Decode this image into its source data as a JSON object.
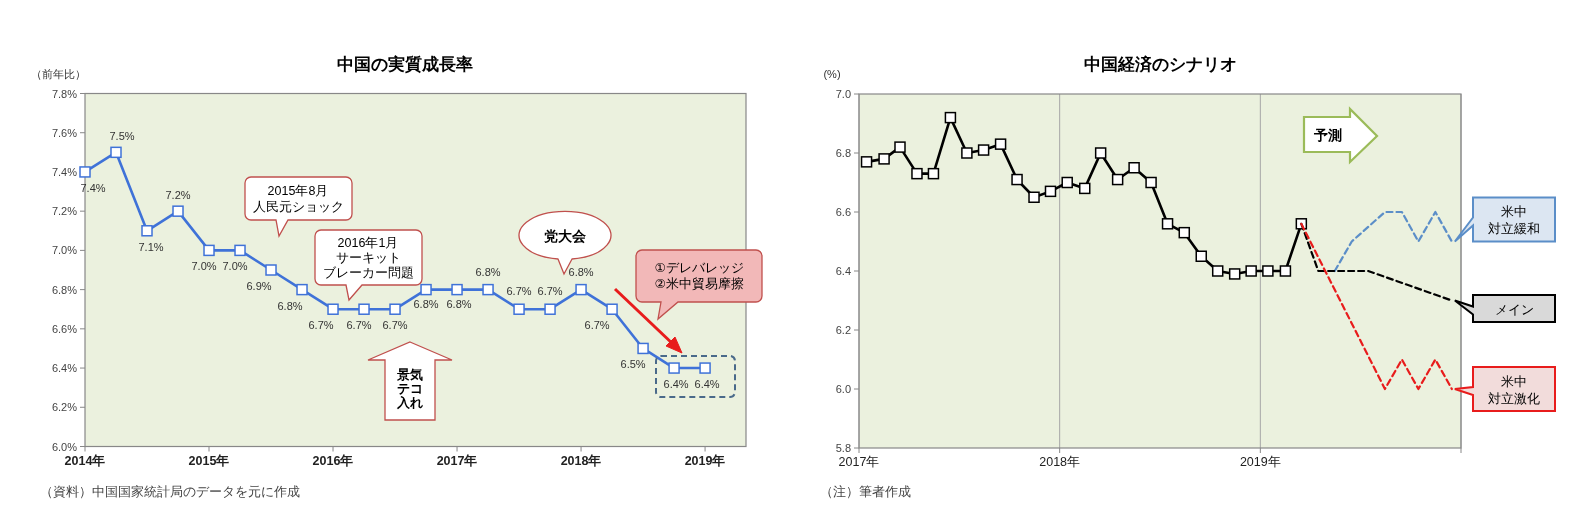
{
  "chart_data": [
    {
      "type": "line",
      "title": "中国の実質成長率",
      "ylabel": "（前年比）",
      "x": [
        2014,
        2014.25,
        2014.5,
        2014.75,
        2015,
        2015.25,
        2015.5,
        2015.75,
        2016,
        2016.25,
        2016.5,
        2016.75,
        2017,
        2017.25,
        2017.5,
        2017.75,
        2018,
        2018.25,
        2018.5,
        2018.75,
        2019
      ],
      "series": [
        {
          "color": "#3f72d8",
          "values": [
            7.4,
            7.5,
            7.1,
            7.2,
            7.0,
            7.0,
            6.9,
            6.8,
            6.7,
            6.7,
            6.7,
            6.8,
            6.8,
            6.8,
            6.7,
            6.7,
            6.8,
            6.7,
            6.5,
            6.4,
            6.4
          ],
          "value_labels": [
            "7.4%",
            "7.5%",
            "7.1%",
            "7.2%",
            "7.0%",
            "7.0%",
            "6.9%",
            "6.8%",
            "6.7%",
            "6.7%",
            "6.7%",
            "6.8%",
            "6.8%",
            "6.8%",
            "6.7%",
            "6.7%",
            "6.8%",
            "6.7%",
            "6.5%",
            "6.4%",
            "6.4%"
          ]
        }
      ],
      "marker": "square",
      "line_style": "solid",
      "legend": false,
      "xlim": [
        2014,
        2019.33
      ],
      "xticks": [
        {
          "value": 2014,
          "label": "2014年"
        },
        {
          "value": 2015,
          "label": "2015年"
        },
        {
          "value": 2016,
          "label": "2016年"
        },
        {
          "value": 2017,
          "label": "2017年"
        },
        {
          "value": 2018,
          "label": "2018年"
        },
        {
          "value": 2019,
          "label": "2019年"
        }
      ],
      "ylim": [
        6.0,
        7.8
      ],
      "yticks": [
        {
          "value": 6.0,
          "label": "6.0%"
        },
        {
          "value": 6.2,
          "label": "6.2%"
        },
        {
          "value": 6.4,
          "label": "6.4%"
        },
        {
          "value": 6.6,
          "label": "6.6%"
        },
        {
          "value": 6.8,
          "label": "6.8%"
        },
        {
          "value": 7.0,
          "label": "7.0%"
        },
        {
          "value": 7.2,
          "label": "7.2%"
        },
        {
          "value": 7.4,
          "label": "7.4%"
        },
        {
          "value": 7.6,
          "label": "7.6%"
        },
        {
          "value": 7.8,
          "label": "7.8%"
        }
      ],
      "annotations": [
        "2015年8月人民元ショック",
        "2016年1月サーキットブレーカー問題",
        "党大会",
        "景気テコ入れ",
        "①デレバレッジ\n②米中貿易摩擦",
        "（資料）中国国家統計局のデータを元に作成"
      ]
    },
    {
      "type": "line",
      "title": "中国経済のシナリオ",
      "ylabel": "(%)",
      "series": [
        {
          "color": "#000000",
          "marker": "square",
          "line_style": "solid",
          "x": [
            "2017-01-15",
            "2017-02-15",
            "2017-03-15",
            "2017-04-15",
            "2017-05-15",
            "2017-06-15",
            "2017-07-15",
            "2017-08-15",
            "2017-09-15",
            "2017-10-15",
            "2017-11-15",
            "2017-12-15",
            "2018-01-15",
            "2018-02-15",
            "2018-03-15",
            "2018-04-15",
            "2018-05-15",
            "2018-06-15",
            "2018-07-15",
            "2018-08-15",
            "2018-09-15",
            "2018-10-15",
            "2018-11-15",
            "2018-12-15",
            "2019-01-15",
            "2019-02-15",
            "2019-03-15"
          ],
          "values": [
            6.77,
            6.78,
            6.82,
            6.73,
            6.73,
            6.92,
            6.8,
            6.81,
            6.83,
            6.71,
            6.65,
            6.67,
            6.7,
            6.68,
            6.8,
            6.71,
            6.75,
            6.7,
            6.56,
            6.53,
            6.45,
            6.4,
            6.39,
            6.4,
            6.4,
            6.4,
            6.56
          ]
        },
        {
          "name": "米中対立緩和",
          "color": "#5b8ec8",
          "marker": "none",
          "line_style": "dashed",
          "x": [
            "2019-05-15",
            "2019-06-15",
            "2019-08-15",
            "2019-09-15",
            "2019-10-15",
            "2019-11-15",
            "2019-12-15"
          ],
          "values": [
            6.4,
            6.5,
            6.6,
            6.6,
            6.5,
            6.6,
            6.5
          ]
        },
        {
          "name": "メイン",
          "color": "#000000",
          "marker": "none",
          "line_style": "dashed",
          "x": [
            "2019-03-15",
            "2019-04-15",
            "2019-07-15",
            "2019-12-15"
          ],
          "values": [
            6.56,
            6.4,
            6.4,
            6.3
          ]
        },
        {
          "name": "米中対立激化",
          "color": "#e81c1c",
          "marker": "none",
          "line_style": "dashed",
          "x": [
            "2019-03-15",
            "2019-08-15",
            "2019-09-15",
            "2019-10-15",
            "2019-11-15",
            "2019-12-15"
          ],
          "values": [
            6.56,
            6.0,
            6.1,
            6.0,
            6.1,
            6.0
          ]
        }
      ],
      "legend": false,
      "grid": "x",
      "xlim": [
        "2017",
        "2020"
      ],
      "xticks": [
        {
          "value": "2017",
          "label": "2017年"
        },
        {
          "value": "2018",
          "label": "2018年"
        },
        {
          "value": "2019",
          "label": "2019年"
        },
        {
          "value": "2020",
          "label": null
        }
      ],
      "ylim": [
        5.8,
        7.0
      ],
      "yticks": [
        5.8,
        {
          "value": 6.0,
          "label": "6.0"
        },
        6.2,
        6.4,
        6.6,
        6.8,
        {
          "value": 7.0,
          "label": "7.0"
        }
      ],
      "annotations": [
        "予測",
        "（注）筆者作成"
      ]
    }
  ]
}
